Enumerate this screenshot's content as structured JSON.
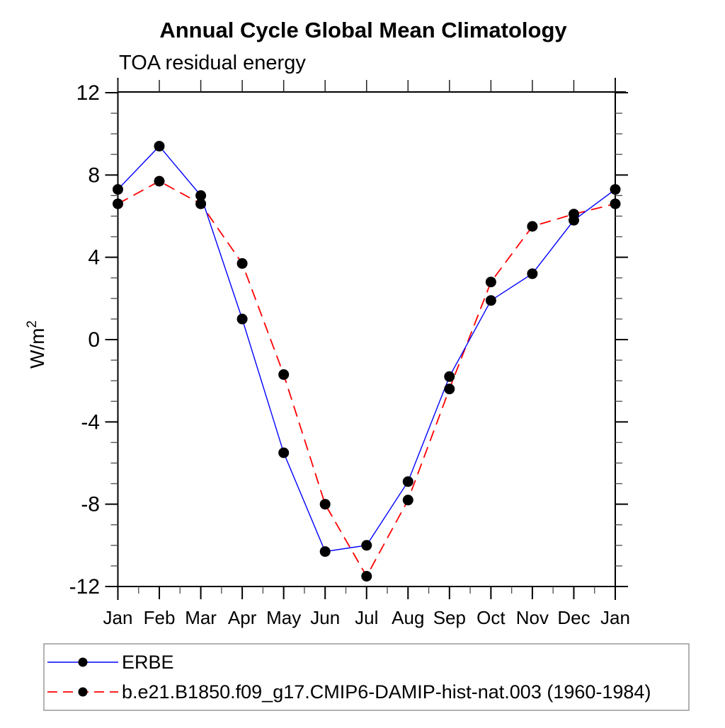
{
  "page": {
    "background": "#ffffff"
  },
  "chart_data": {
    "type": "line",
    "title": "Annual Cycle Global Mean Climatology",
    "subtitle": "TOA residual energy",
    "ylabel": "W/m²",
    "xlabel": "",
    "categories": [
      "Jan",
      "Feb",
      "Mar",
      "Apr",
      "May",
      "Jun",
      "Jul",
      "Aug",
      "Sep",
      "Oct",
      "Nov",
      "Dec",
      "Jan"
    ],
    "ylim": [
      -12,
      12
    ],
    "yticks_major": [
      12,
      8,
      4,
      0,
      -4,
      -8,
      -12
    ],
    "ytick_minor_step": 1,
    "xtick_minor_step": 0.5,
    "grid": false,
    "legend_position": "bottom-left",
    "marker": {
      "shape": "circle",
      "color": "#000000"
    },
    "axis_color": "#000000",
    "series": [
      {
        "name": "ERBE",
        "line_style": "solid",
        "color": "#0000ff",
        "values": [
          7.3,
          9.4,
          7.0,
          1.0,
          -5.5,
          -10.3,
          -10.0,
          -6.9,
          -1.8,
          1.9,
          3.2,
          5.8,
          7.3
        ]
      },
      {
        "name": "b.e21.B1850.f09_g17.CMIP6-DAMIP-hist-nat.003 (1960-1984)",
        "line_style": "dashed",
        "color": "#ff0000",
        "values": [
          6.6,
          7.7,
          6.6,
          3.7,
          -1.7,
          -8.0,
          -11.5,
          -7.8,
          -2.4,
          2.8,
          5.5,
          6.1,
          6.6
        ]
      }
    ]
  }
}
